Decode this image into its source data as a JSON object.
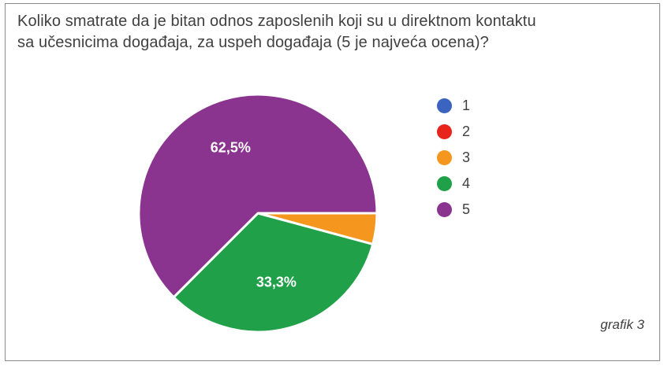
{
  "title_lines": [
    "Koliko smatrate da je bitan odnos zaposlenih koji su u direktnom kontaktu",
    "sa učesnicima događaja, za uspeh događaja (5 je najveća ocena)?"
  ],
  "note": "grafik 3",
  "chart_data": {
    "type": "pie",
    "title": "Koliko smatrate da je bitan odnos zaposlenih koji su u direktnom kontaktu sa učesnicima događaja, za uspeh događaja (5 je najveća ocena)?",
    "categories": [
      "1",
      "2",
      "3",
      "4",
      "5"
    ],
    "values": [
      0,
      0,
      4.2,
      33.3,
      62.5
    ],
    "colors": [
      "#3b64c0",
      "#e8231c",
      "#f5961f",
      "#20a049",
      "#8a3490"
    ],
    "data_labels": [
      "",
      "",
      "",
      "33,3%",
      "62,5%"
    ],
    "legend_position": "right"
  }
}
